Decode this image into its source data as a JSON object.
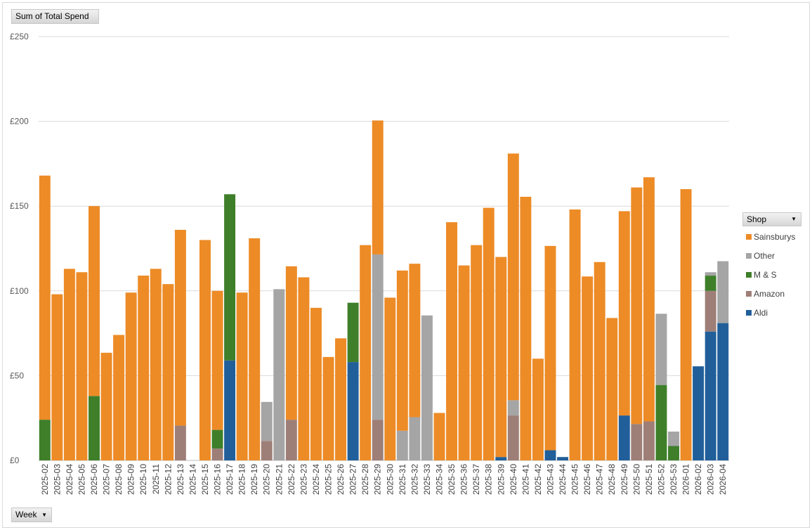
{
  "filter_button": {
    "label": "Sum of Total Spend"
  },
  "axis_button": {
    "label": "Week",
    "icon": "dropdown-caret-icon"
  },
  "legend": {
    "title": "Shop",
    "icon": "dropdown-caret-icon"
  },
  "colors": {
    "Sainsburys": "#ED8B26",
    "Other": "#A5A5A5",
    "M & S": "#3F7F2A",
    "Amazon": "#9E7F78",
    "Aldi": "#215F9A"
  },
  "chart_data": {
    "type": "bar",
    "stacked": true,
    "title": "",
    "xlabel": "",
    "ylabel": "",
    "ylim": [
      0,
      250
    ],
    "yticks": [
      "£0",
      "£50",
      "£100",
      "£150",
      "£200",
      "£250"
    ],
    "grid": true,
    "legend_position": "right",
    "categories": [
      "2025-02",
      "2025-03",
      "2025-04",
      "2025-05",
      "2025-06",
      "2025-07",
      "2025-08",
      "2025-09",
      "2025-10",
      "2025-11",
      "2025-12",
      "2025-13",
      "2025-14",
      "2025-15",
      "2025-16",
      "2025-17",
      "2025-18",
      "2025-19",
      "2025-20",
      "2025-21",
      "2025-22",
      "2025-23",
      "2025-24",
      "2025-25",
      "2025-26",
      "2025-27",
      "2025-28",
      "2025-29",
      "2025-30",
      "2025-31",
      "2025-32",
      "2025-33",
      "2025-34",
      "2025-35",
      "2025-36",
      "2025-37",
      "2025-38",
      "2025-39",
      "2025-40",
      "2025-41",
      "2025-42",
      "2025-43",
      "2025-44",
      "2025-45",
      "2025-46",
      "2025-47",
      "2025-48",
      "2025-49",
      "2025-50",
      "2025-51",
      "2025-52",
      "2025-53",
      "2026-01",
      "2026-02",
      "2026-03",
      "2026-04"
    ],
    "series": [
      {
        "name": "Aldi",
        "values": [
          0,
          0,
          0,
          0,
          0,
          0,
          0,
          0,
          0,
          0,
          0,
          0,
          0,
          0,
          0,
          59,
          0,
          0,
          0,
          0,
          0,
          0,
          0,
          0,
          0,
          58,
          0,
          0,
          0,
          0,
          0,
          0,
          0,
          0,
          0,
          0,
          0,
          2,
          0,
          0,
          0,
          6,
          2,
          0,
          0,
          0,
          0,
          26.5,
          0,
          0,
          0,
          0,
          0,
          55.5,
          76,
          81
        ]
      },
      {
        "name": "Amazon",
        "values": [
          0,
          0,
          0,
          0,
          0,
          0,
          0,
          0,
          0,
          0,
          0,
          20.5,
          0,
          0,
          7,
          0,
          0,
          0,
          11.5,
          0,
          24,
          0,
          0,
          0,
          0,
          0,
          0,
          24,
          0,
          0,
          0,
          0,
          0,
          0,
          0,
          0,
          0,
          0,
          26.5,
          0,
          0,
          0,
          0,
          0,
          0,
          0,
          0,
          0,
          21.5,
          23,
          0,
          0,
          0,
          0,
          24,
          0
        ]
      },
      {
        "name": "M & S",
        "values": [
          24,
          0,
          0,
          0,
          38,
          0,
          0,
          0,
          0,
          0,
          0,
          0,
          0,
          0,
          11,
          98,
          0,
          0,
          0,
          0,
          0,
          0,
          0,
          0,
          0,
          35,
          0,
          0,
          0,
          0,
          0,
          0,
          0,
          0,
          0,
          0,
          0,
          0,
          0,
          0,
          0,
          0,
          0,
          0,
          0,
          0,
          0,
          0,
          0,
          0,
          44.5,
          8.5,
          0,
          0,
          9,
          0
        ]
      },
      {
        "name": "Other",
        "values": [
          0,
          0,
          0,
          0,
          0,
          0,
          0,
          0,
          0,
          0,
          0,
          0,
          0,
          0,
          0,
          0,
          0,
          0,
          23,
          101,
          0,
          0,
          0,
          0,
          0,
          0,
          0,
          97.5,
          0,
          17.5,
          25.5,
          85.5,
          0,
          0,
          0,
          0,
          0,
          0,
          9,
          0,
          0,
          0,
          0,
          0,
          0,
          0,
          0,
          0,
          0,
          0,
          42,
          8.5,
          0,
          0,
          2,
          36.5
        ]
      },
      {
        "name": "Sainsburys",
        "values": [
          144,
          98,
          113,
          111,
          112,
          63.5,
          74,
          99,
          109,
          113,
          104,
          115.5,
          0,
          130,
          82,
          0,
          99,
          131,
          0,
          0,
          90.5,
          108,
          90,
          61,
          72,
          0,
          127,
          79,
          96,
          94.5,
          90.5,
          0,
          28,
          140.5,
          115,
          127,
          149,
          118,
          145.5,
          155.5,
          60,
          120.5,
          0,
          148,
          108.5,
          117,
          84,
          120.5,
          139.5,
          144,
          0,
          0,
          160,
          0,
          0,
          0
        ]
      }
    ]
  }
}
